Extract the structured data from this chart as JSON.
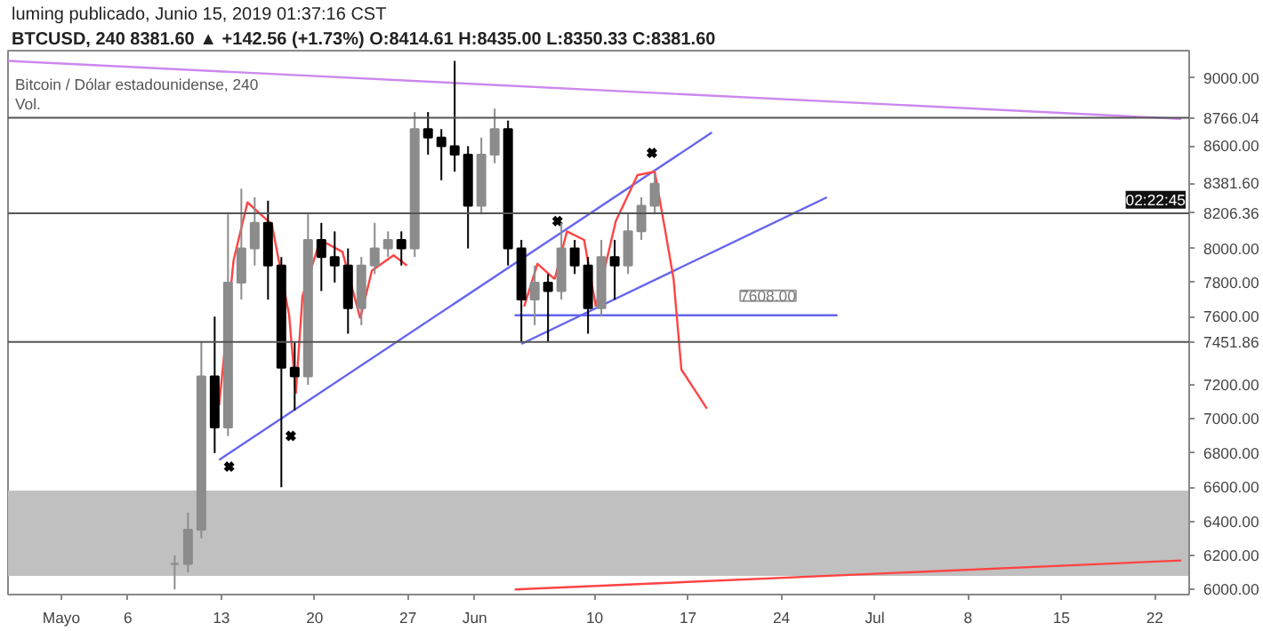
{
  "chart_data": {
    "type": "candlestick",
    "title": "BTCUSD, 240  8381.60 ▲ +142.56 (+1.73%) O:8414.61 H:8435.00 L:8350.33 C:8381.60",
    "subtitle": "luming publicado, Junio 15, 2019 01:37:16 CST",
    "x": [
      "2019-05-09T12:00",
      "2019-05-10T12:00",
      "2019-05-11T12:00",
      "2019-05-12T12:00",
      "2019-05-13T12:00",
      "2019-05-14T12:00",
      "2019-05-15T12:00",
      "2019-05-16T12:00",
      "2019-05-17T12:00",
      "2019-05-18T12:00",
      "2019-05-19T12:00",
      "2019-05-20T12:00",
      "2019-05-21T12:00",
      "2019-05-22T12:00",
      "2019-05-23T12:00",
      "2019-05-24T12:00",
      "2019-05-25T12:00",
      "2019-05-26T12:00",
      "2019-05-27T12:00",
      "2019-05-28T12:00",
      "2019-05-29T12:00",
      "2019-05-30T12:00",
      "2019-05-31T12:00",
      "2019-06-01T12:00",
      "2019-06-02T12:00",
      "2019-06-03T12:00",
      "2019-06-04T12:00",
      "2019-06-05T12:00",
      "2019-06-06T12:00",
      "2019-06-07T12:00",
      "2019-06-08T12:00",
      "2019-06-09T12:00",
      "2019-06-10T12:00",
      "2019-06-11T12:00",
      "2019-06-12T12:00",
      "2019-06-13T12:00",
      "2019-06-14T12:00"
    ],
    "ohlc": [
      [
        6150,
        6200,
        6000,
        6150
      ],
      [
        6150,
        6450,
        6100,
        6350
      ],
      [
        6350,
        7450,
        6300,
        7250
      ],
      [
        7250,
        7600,
        6800,
        6950
      ],
      [
        6950,
        8200,
        6900,
        7800
      ],
      [
        7800,
        8350,
        7700,
        8000
      ],
      [
        8000,
        8300,
        7900,
        8150
      ],
      [
        8150,
        8280,
        7700,
        7900
      ],
      [
        7900,
        7950,
        6600,
        7300
      ],
      [
        7300,
        7450,
        7050,
        7250
      ],
      [
        7250,
        8200,
        7200,
        8050
      ],
      [
        8050,
        8150,
        7750,
        7950
      ],
      [
        7950,
        8100,
        7800,
        7900
      ],
      [
        7900,
        8000,
        7500,
        7650
      ],
      [
        7650,
        7950,
        7550,
        7900
      ],
      [
        7900,
        8150,
        7850,
        8000
      ],
      [
        8000,
        8100,
        7950,
        8050
      ],
      [
        8050,
        8100,
        7900,
        8000
      ],
      [
        8000,
        8800,
        7950,
        8700
      ],
      [
        8700,
        8800,
        8550,
        8650
      ],
      [
        8650,
        8700,
        8400,
        8600
      ],
      [
        8600,
        9100,
        8450,
        8550
      ],
      [
        8550,
        8600,
        8000,
        8250
      ],
      [
        8250,
        8650,
        8200,
        8550
      ],
      [
        8550,
        8820,
        8500,
        8700
      ],
      [
        8700,
        8750,
        7900,
        8000
      ],
      [
        8000,
        8050,
        7450,
        7700
      ],
      [
        7700,
        7900,
        7550,
        7800
      ],
      [
        7800,
        7850,
        7450,
        7750
      ],
      [
        7750,
        8150,
        7700,
        8000
      ],
      [
        8000,
        8050,
        7850,
        7900
      ],
      [
        7900,
        7950,
        7500,
        7650
      ],
      [
        7650,
        8050,
        7600,
        7950
      ],
      [
        7950,
        8050,
        7700,
        7900
      ],
      [
        7900,
        8200,
        7850,
        8100
      ],
      [
        8100,
        8300,
        8050,
        8250
      ],
      [
        8250,
        8440,
        8200,
        8380
      ]
    ],
    "colors": [
      "#8c8c8c",
      "#8c8c8c",
      "#8c8c8c",
      "#000000",
      "#8c8c8c",
      "#8c8c8c",
      "#8c8c8c",
      "#000000",
      "#000000",
      "#000000",
      "#8c8c8c",
      "#000000",
      "#000000",
      "#000000",
      "#8c8c8c",
      "#8c8c8c",
      "#8c8c8c",
      "#000000",
      "#8c8c8c",
      "#000000",
      "#000000",
      "#000000",
      "#000000",
      "#8c8c8c",
      "#8c8c8c",
      "#000000",
      "#000000",
      "#8c8c8c",
      "#000000",
      "#8c8c8c",
      "#000000",
      "#000000",
      "#8c8c8c",
      "#000000",
      "#8c8c8c",
      "#8c8c8c",
      "#8c8c8c"
    ],
    "series": [
      {
        "type": "line",
        "color": "#cc88ee",
        "x": [
          "2019-04-27",
          "2019-07-24"
        ],
        "values": [
          9100,
          8760
        ]
      },
      {
        "type": "line",
        "color": "#6666ee",
        "x": [
          "2019-05-12T20:00",
          "2019-06-18T19:00"
        ],
        "values": [
          6760,
          8680
        ]
      },
      {
        "type": "line",
        "color": "#6666ee",
        "x": [
          "2019-06-04T12:00",
          "2019-06-27T10:00"
        ],
        "values": [
          7440,
          8300
        ]
      },
      {
        "type": "line",
        "color": "#6666ee",
        "x": [
          "2019-06-04T00:00",
          "2019-06-28T05:00"
        ],
        "values": [
          7608,
          7608
        ]
      },
      {
        "type": "line",
        "color": "#ff4444",
        "x": [
          "2019-05-12T20:00",
          "2019-05-13T22:00",
          "2019-05-14T23:00",
          "2019-05-16T19:00",
          "2019-05-18T02:00",
          "2019-05-18T14:00"
        ],
        "values": [
          7080,
          7930,
          8270,
          8140,
          7610,
          7150
        ]
      },
      {
        "type": "line",
        "color": "#ff4444",
        "x": [
          "2019-05-18T14:00",
          "2019-05-19T02:00",
          "2019-05-20T10:00",
          "2019-05-22T02:00",
          "2019-05-23T10:00"
        ],
        "values": [
          7150,
          7720,
          8050,
          7980,
          7590
        ]
      },
      {
        "type": "line",
        "color": "#ff4444",
        "x": [
          "2019-05-23T10:00",
          "2019-05-24T07:00",
          "2019-05-25T22:00",
          "2019-05-26T22:00"
        ],
        "values": [
          7590,
          7870,
          7960,
          7900
        ]
      },
      {
        "type": "line",
        "color": "#ff4444",
        "x": [
          "2019-06-04T17:00",
          "2019-06-05T17:00",
          "2019-06-07T00:00"
        ],
        "values": [
          7660,
          7910,
          7820
        ]
      },
      {
        "type": "line",
        "color": "#ff4444",
        "x": [
          "2019-06-07T00:00",
          "2019-06-07T22:00",
          "2019-06-09T05:00",
          "2019-06-10T02:00"
        ],
        "values": [
          7820,
          8100,
          8050,
          7660
        ]
      },
      {
        "type": "line",
        "color": "#ff4444",
        "x": [
          "2019-06-10T02:00",
          "2019-06-11T14:00",
          "2019-06-13T05:00",
          "2019-06-14T12:00",
          "2019-06-15T05:00",
          "2019-06-15T22:00",
          "2019-06-16T12:00",
          "2019-06-17T14:00",
          "2019-06-18T10:00"
        ],
        "values": [
          7660,
          8160,
          8430,
          8450,
          8140,
          7820,
          7290,
          7160,
          7060
        ]
      },
      {
        "type": "line",
        "color": "#ff4444",
        "x": [
          "2019-06-04T00:00",
          "2019-07-24T00:00"
        ],
        "values": [
          6000,
          6170
        ]
      },
      {
        "type": "scatter",
        "color": "#000000",
        "marker": "cross",
        "x": [
          "2019-05-13T14:00",
          "2019-05-18T05:00",
          "2019-06-07T05:00",
          "2019-06-14T07:00"
        ],
        "values": [
          6720,
          6900,
          8160,
          8560
        ]
      }
    ],
    "xlim": [
      "2019-04-27",
      "2019-07-24T14:00"
    ],
    "xticks": [
      {
        "value": "2019-05-01",
        "label": "Mayo"
      },
      {
        "value": "2019-05-06",
        "label": "6"
      },
      {
        "value": "2019-05-13",
        "label": "13"
      },
      {
        "value": "2019-05-20",
        "label": "20"
      },
      {
        "value": "2019-05-27",
        "label": "27"
      },
      {
        "value": "2019-06-01",
        "label": "Jun"
      },
      {
        "value": "2019-06-10",
        "label": "10"
      },
      {
        "value": "2019-06-17",
        "label": "17"
      },
      {
        "value": "2019-06-24",
        "label": "24"
      },
      {
        "value": "2019-07-01",
        "label": "Jul"
      },
      {
        "value": "2019-07-08",
        "label": "8"
      },
      {
        "value": "2019-07-15",
        "label": "15"
      },
      {
        "value": "2019-07-22",
        "label": "22"
      }
    ],
    "ylim": [
      5970,
      9160
    ],
    "yticks": [
      {
        "value": 6000,
        "label": "6000.00"
      },
      {
        "value": 6200,
        "label": "6200.00"
      },
      {
        "value": 6400,
        "label": "6400.00"
      },
      {
        "value": 6600,
        "label": "6600.00"
      },
      {
        "value": 6800,
        "label": "6800.00"
      },
      {
        "value": 7000,
        "label": "7000.00"
      },
      {
        "value": 7200,
        "label": "7200.00"
      },
      {
        "value": 7600,
        "label": "7600.00"
      },
      {
        "value": 7800,
        "label": "7800.00"
      },
      {
        "value": 8000,
        "label": "8000.00"
      },
      {
        "value": 8381.6,
        "label": "8381.60"
      },
      {
        "value": 8600,
        "label": "8600.00"
      },
      {
        "value": 9000,
        "label": "9000.00"
      }
    ],
    "ref_lines": [
      {
        "axis": "y",
        "value": 8766.04,
        "label": "8766.04",
        "color": "#555555"
      },
      {
        "axis": "y",
        "value": 8206.36,
        "label": "8206.36",
        "color": "#555555"
      },
      {
        "axis": "y",
        "value": 7451.86,
        "label": "7451.86",
        "color": "#555555"
      }
    ],
    "bands": [
      {
        "axis": "y",
        "from": 6080,
        "to": 6580,
        "color": "#c0c0c0"
      }
    ],
    "annotations": [
      "Bitcoin / Dólar estadounidense, 240",
      "Vol.",
      {
        "text": "7608.00",
        "x": "2019-06-23T00:00",
        "y": 7608
      },
      "02:22:45"
    ],
    "grid": false
  }
}
